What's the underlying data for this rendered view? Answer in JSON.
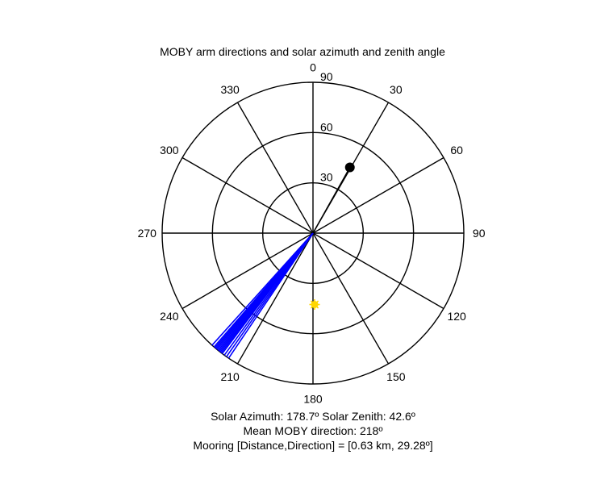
{
  "chart_data": {
    "type": "polar",
    "title": "MOBY arm directions and solar azimuth and zenith angle",
    "angle_ticks": [
      "0",
      "30",
      "60",
      "90",
      "120",
      "150",
      "180",
      "210",
      "240",
      "270",
      "300",
      "330"
    ],
    "radial_ticks": [
      "30",
      "60",
      "90"
    ],
    "radial_max": 90,
    "angle_convention": "clockwise from north (0 at top)",
    "grid": true,
    "series": [
      {
        "kind": "arm_direction_lines",
        "color": "#0000ff",
        "directions_deg": [
          214,
          215,
          216,
          217,
          218,
          219,
          219.5,
          220,
          221,
          222,
          220.5,
          218.5,
          217.5
        ],
        "zenith_deg": 90
      },
      {
        "kind": "mooring_marker",
        "color": "#000000",
        "direction_deg": 29.28,
        "zenith_deg": 45
      },
      {
        "kind": "sun_marker",
        "color": "#ffd700",
        "azimuth_deg": 178.7,
        "zenith_deg": 42.6
      }
    ]
  },
  "captions": {
    "line1": "Solar Azimuth: 178.7º   Solar Zenith: 42.6º",
    "line2": "Mean MOBY direction: 218º",
    "line3": "Mooring [Distance,Direction] = [0.63 km, 29.28º]"
  }
}
